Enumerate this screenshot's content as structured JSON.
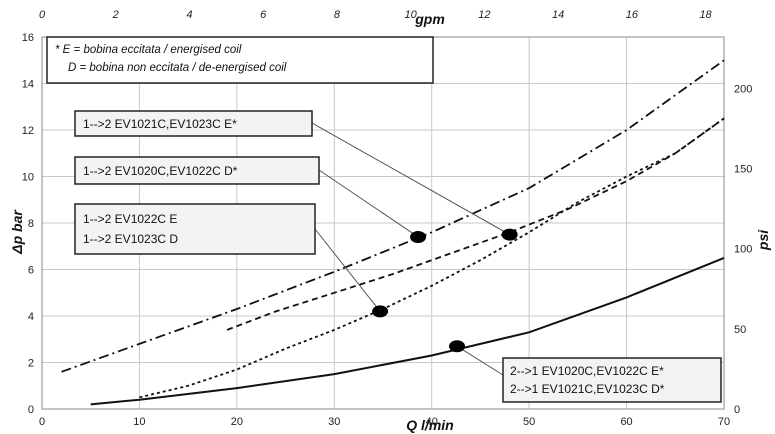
{
  "chart_data": {
    "type": "line",
    "xlabel_bottom": "Q l/min",
    "xlabel_top": "gpm",
    "ylabel_left": "Δp bar",
    "ylabel_right": "psi",
    "xlim": [
      0,
      70
    ],
    "ylim": [
      0,
      16
    ],
    "x2lim": [
      0,
      18.5
    ],
    "y2lim": [
      0,
      232
    ],
    "x_ticks": [
      0,
      10,
      20,
      30,
      40,
      50,
      60,
      70
    ],
    "y_ticks": [
      0,
      2,
      4,
      6,
      8,
      10,
      12,
      14,
      16
    ],
    "x2_ticks": [
      0,
      2,
      4,
      6,
      8,
      10,
      12,
      14,
      16,
      18
    ],
    "y2_ticks": [
      0,
      50,
      100,
      150,
      200
    ],
    "grid": true,
    "note": [
      "* E = bobina eccitata / energised coil",
      "D = bobina non eccitata / de-energised coil"
    ],
    "series": [
      {
        "style": "dashdot",
        "x": [
          2,
          10,
          20,
          30,
          40,
          50,
          60,
          70
        ],
        "y": [
          1.6,
          2.8,
          4.3,
          5.9,
          7.6,
          9.5,
          12.0,
          15.0
        ]
      },
      {
        "style": "dashed",
        "x": [
          19,
          24,
          30,
          36,
          42,
          48,
          54,
          60,
          65,
          70
        ],
        "y": [
          3.4,
          4.2,
          5.0,
          5.8,
          6.7,
          7.6,
          8.6,
          9.8,
          11.0,
          12.5
        ]
      },
      {
        "style": "dotted",
        "x": [
          10,
          15,
          20,
          25,
          30,
          35,
          40,
          45,
          50,
          55,
          60,
          65,
          70
        ],
        "y": [
          0.5,
          1.0,
          1.7,
          2.6,
          3.4,
          4.3,
          5.3,
          6.4,
          7.6,
          8.9,
          10.0,
          11.0,
          12.5
        ]
      },
      {
        "style": "solid",
        "x": [
          5,
          10,
          20,
          30,
          40,
          50,
          60,
          70
        ],
        "y": [
          0.2,
          0.4,
          0.9,
          1.5,
          2.3,
          3.3,
          4.8,
          6.5
        ]
      }
    ],
    "markers": [
      {
        "x": 38.6,
        "y": 7.4
      },
      {
        "x": 48.0,
        "y": 7.5
      },
      {
        "x": 34.7,
        "y": 4.2
      },
      {
        "x": 42.6,
        "y": 2.7
      }
    ],
    "labels": [
      {
        "lines": [
          "1-->2 EV1021C,EV1023C E*"
        ],
        "marker": 1
      },
      {
        "lines": [
          "1-->2 EV1020C,EV1022C D*"
        ],
        "marker": 0
      },
      {
        "lines": [
          "1-->2 EV1022C E",
          "1-->2 EV1023C D"
        ],
        "marker": 2
      },
      {
        "lines": [
          "2-->1 EV1020C,EV1022C E*",
          "2-->1 EV1021C,EV1023C D*"
        ],
        "marker": 3
      }
    ]
  }
}
